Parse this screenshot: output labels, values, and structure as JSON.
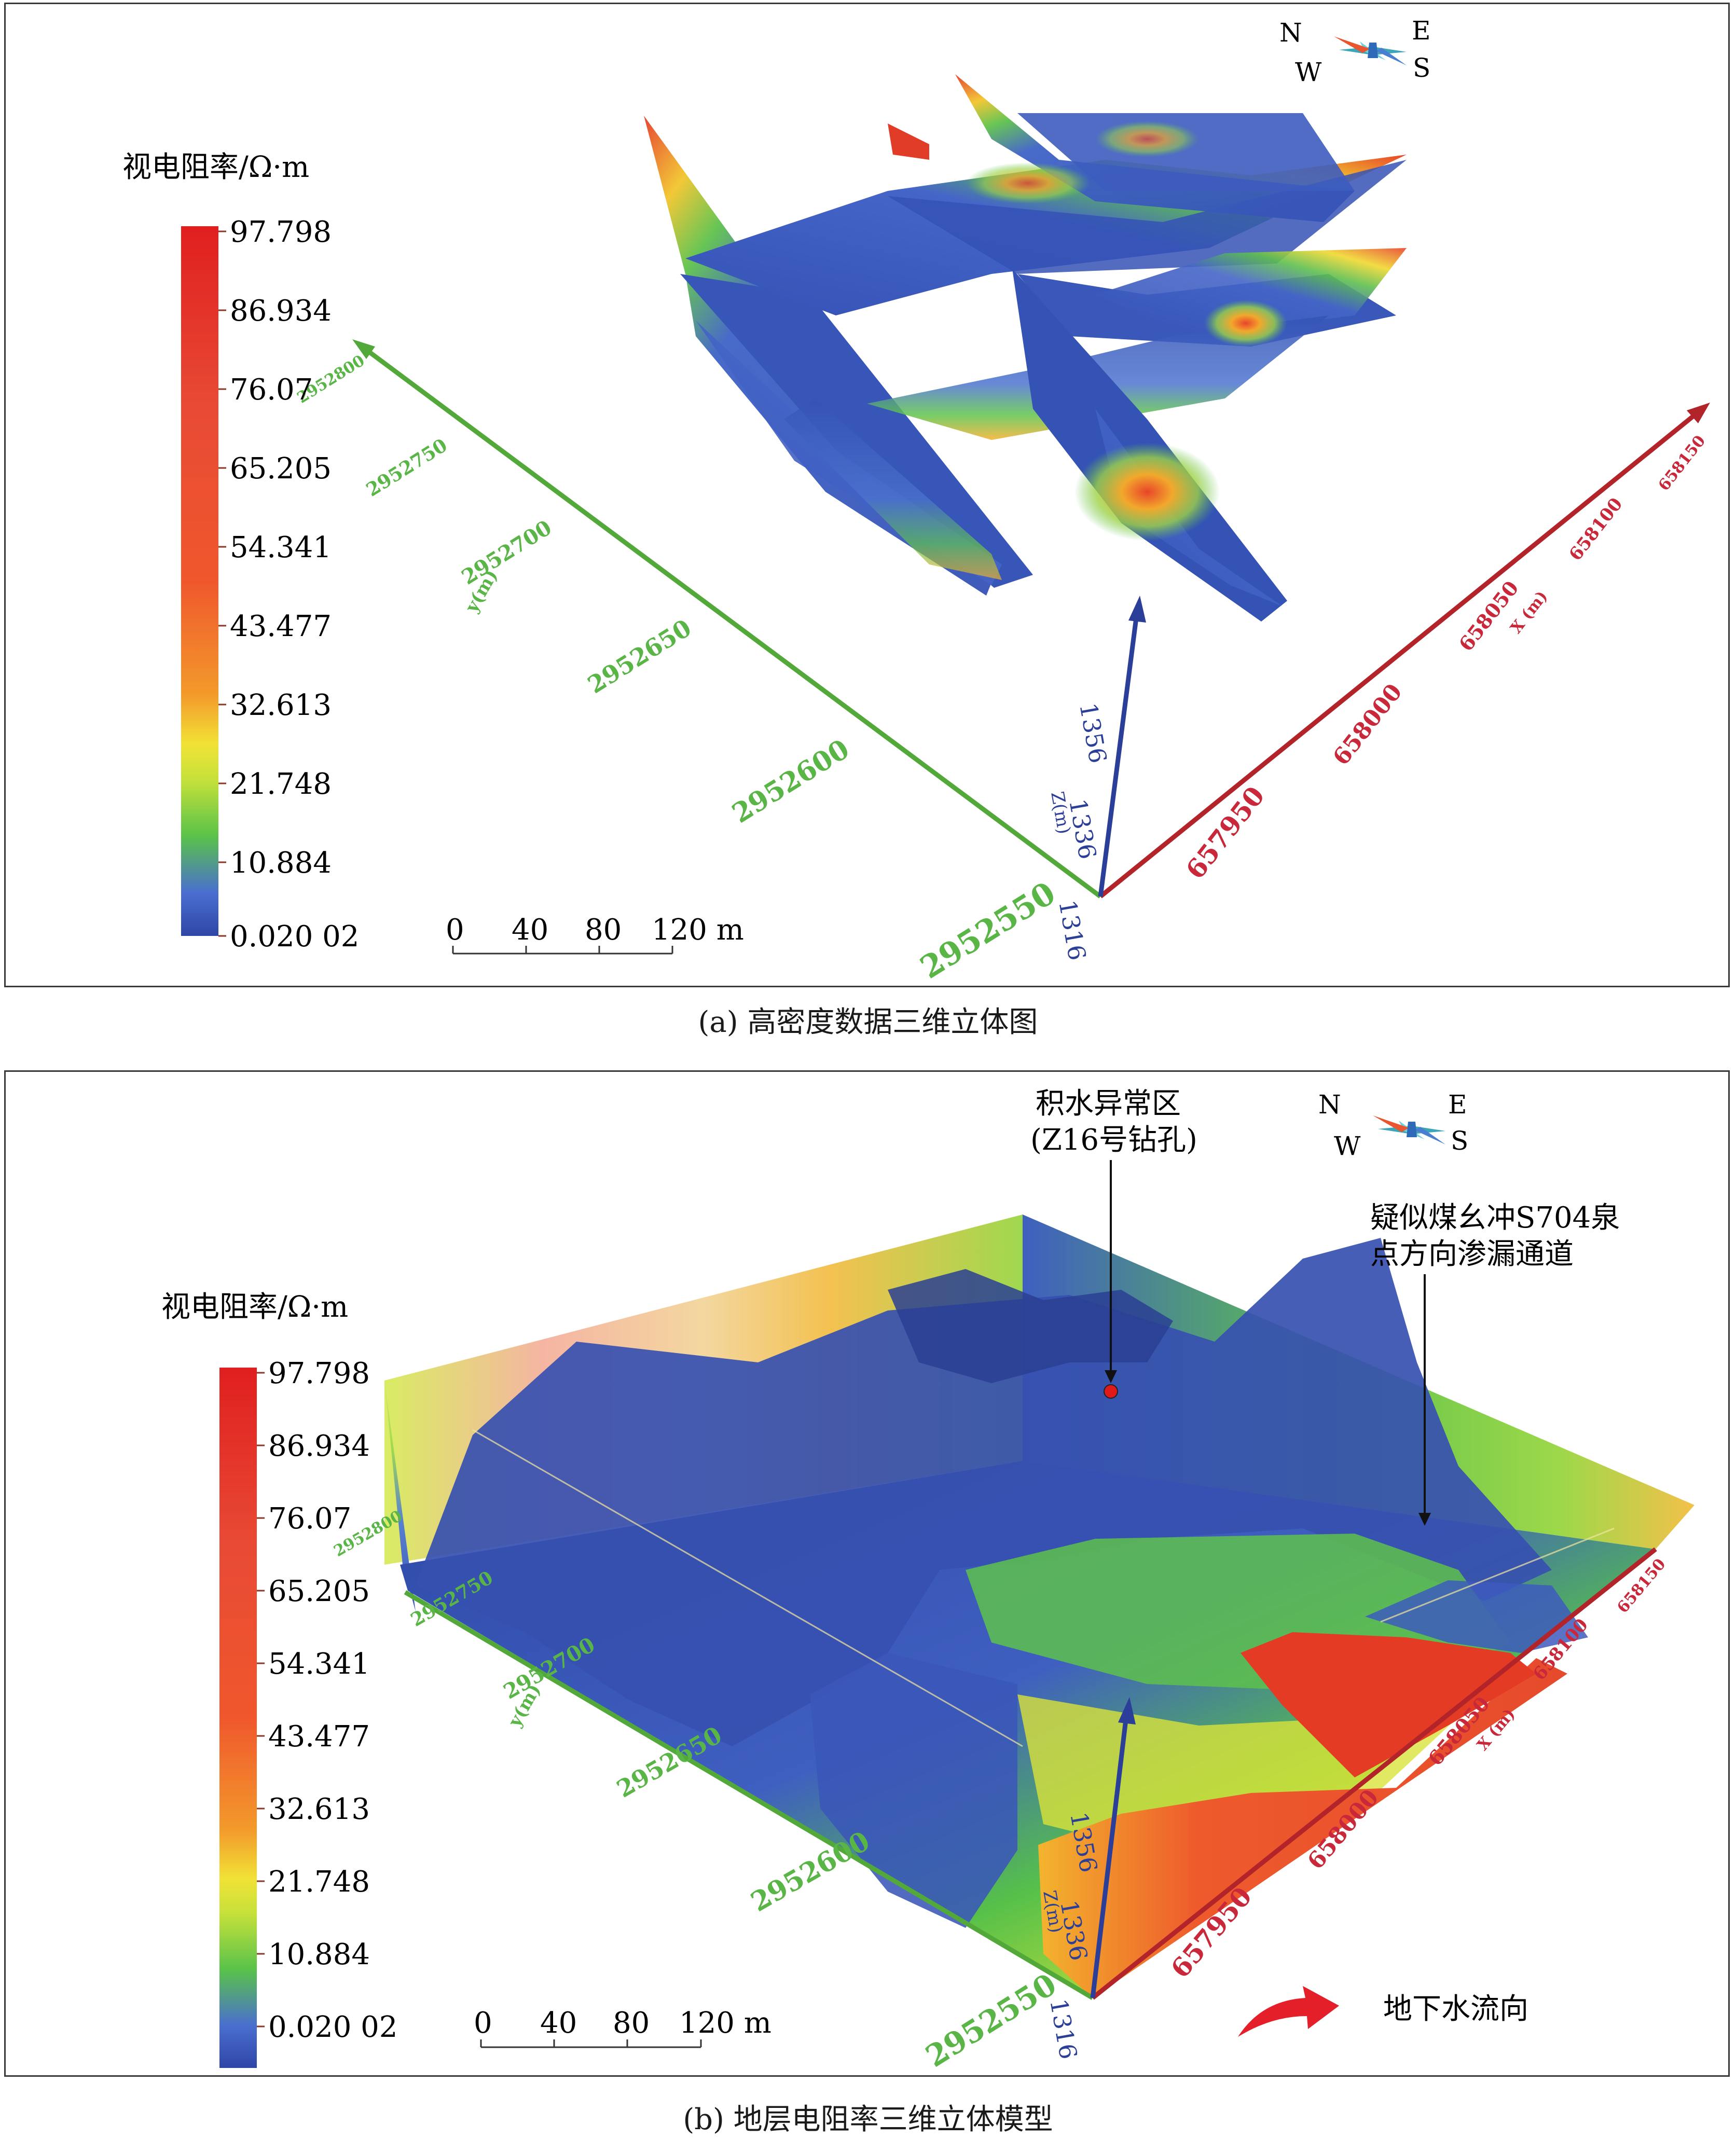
{
  "colors": {
    "deep_blue": "#2e46a6",
    "blue": "#4f6fd0",
    "green": "#59c24a",
    "yellow": "#f1e236",
    "orange": "#f39a2b",
    "red": "#e22a22",
    "y_axis": "#53a83a",
    "x_axis": "#b2232a",
    "z_axis": "#2c3f98"
  },
  "legend": {
    "title": "视电阻率/Ω·m",
    "ticks": [
      "97.798",
      "86.934",
      "76.07",
      "65.205",
      "54.341",
      "43.477",
      "32.613",
      "21.748",
      "10.884",
      "0.020 02"
    ]
  },
  "scale_bar": {
    "labels": [
      "0",
      "40",
      "80",
      "120 m"
    ]
  },
  "compass": {
    "n": "N",
    "e": "E",
    "w": "W",
    "s": "S"
  },
  "axes": {
    "y_ticks": [
      "2952800",
      "2952750",
      "2952700",
      "2952650",
      "2952600",
      "2952550"
    ],
    "y_label": "y(m)",
    "x_ticks": [
      "657950",
      "658000",
      "658050",
      "658100",
      "658150"
    ],
    "x_label": "X (m)",
    "z_ticks": [
      "1356",
      "1336",
      "1316"
    ],
    "z_label": "Z(m)"
  },
  "panel_b": {
    "anomaly_label_line1": "积水异常区",
    "anomaly_label_line2": "(Z16号钻孔)",
    "seepage_label_line1": "疑似煤幺冲S704泉",
    "seepage_label_line2": "点方向渗漏通道",
    "flow_label": "地下水流向"
  },
  "captions": {
    "a": "(a) 高密度数据三维立体图",
    "b": "(b) 地层电阻率三维立体模型"
  }
}
